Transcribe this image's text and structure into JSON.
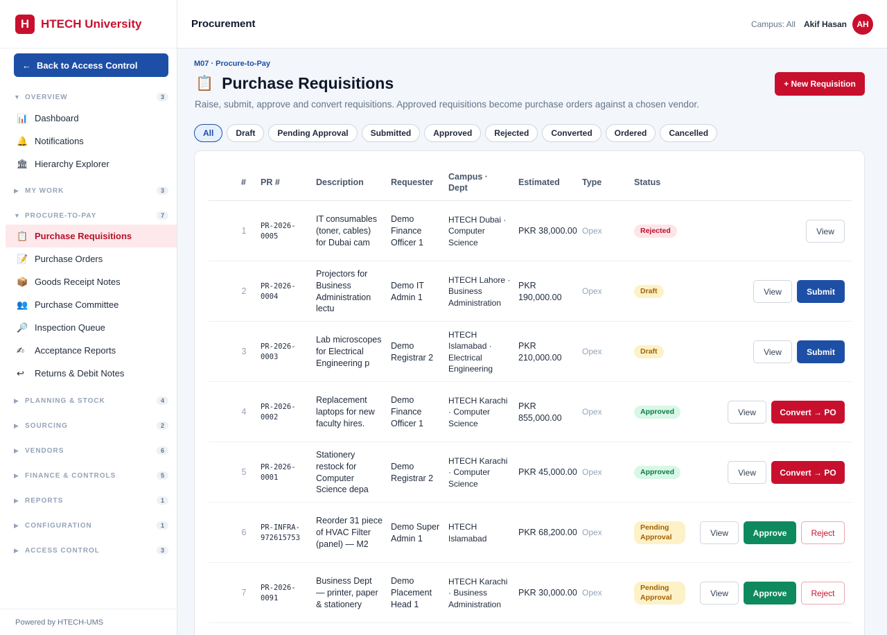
{
  "brand": {
    "logo_letter": "H",
    "name": "HTECH University"
  },
  "sidebar": {
    "back_label": "Back to Access Control",
    "back_arrow": "←",
    "overview": {
      "label": "OVERVIEW",
      "count": "3"
    },
    "overview_items": [
      {
        "label": "Dashboard",
        "icon": "📊"
      },
      {
        "label": "Notifications",
        "icon": "🔔"
      },
      {
        "label": "Hierarchy Explorer",
        "icon": "🏛"
      }
    ],
    "my_work": {
      "label": "MY WORK",
      "count": "3"
    },
    "procure": {
      "label": "PROCURE-TO-PAY",
      "count": "7"
    },
    "procure_items": [
      {
        "label": "Purchase Requisitions",
        "icon": "📋"
      },
      {
        "label": "Purchase Orders",
        "icon": "📝"
      },
      {
        "label": "Goods Receipt Notes",
        "icon": "📦"
      },
      {
        "label": "Purchase Committee",
        "icon": "👥"
      },
      {
        "label": "Inspection Queue",
        "icon": "🔎"
      },
      {
        "label": "Acceptance Reports",
        "icon": "✍"
      },
      {
        "label": "Returns & Debit Notes",
        "icon": "↩"
      }
    ],
    "sections": [
      {
        "label": "PLANNING & STOCK",
        "count": "4"
      },
      {
        "label": "SOURCING",
        "count": "2"
      },
      {
        "label": "VENDORS",
        "count": "6"
      },
      {
        "label": "FINANCE & CONTROLS",
        "count": "5"
      },
      {
        "label": "REPORTS",
        "count": "1"
      },
      {
        "label": "CONFIGURATION",
        "count": "1"
      },
      {
        "label": "ACCESS CONTROL",
        "count": "3"
      }
    ],
    "footer": "Powered by HTECH-UMS"
  },
  "topbar": {
    "title": "Procurement",
    "campus": "Campus: All",
    "user": "Akif Hasan",
    "initials": "AH"
  },
  "page": {
    "crumb": "M07 · Procure-to-Pay",
    "icon": "📋",
    "title": "Purchase Requisitions",
    "subtitle": "Raise, submit, approve and convert requisitions. Approved requisitions become purchase orders against a chosen vendor.",
    "new_button": "+ New Requisition"
  },
  "filters": [
    "All",
    "Draft",
    "Pending Approval",
    "Submitted",
    "Approved",
    "Rejected",
    "Converted",
    "Ordered",
    "Cancelled"
  ],
  "table": {
    "headers": {
      "idx": "#",
      "pr": "PR #",
      "desc": "Description",
      "req": "Requester",
      "camp": "Campus · Dept",
      "est": "Estimated",
      "type": "Type",
      "status": "Status"
    },
    "rows": [
      {
        "idx": "1",
        "pr": "PR-2026-0005",
        "desc": "IT consumables (toner, cables) for Dubai cam",
        "req": "Demo Finance Officer 1",
        "camp": "HTECH Dubai · Computer Science",
        "est": "PKR 38,000.00",
        "type": "Opex",
        "status": "Rejected"
      },
      {
        "idx": "2",
        "pr": "PR-2026-0004",
        "desc": "Projectors for Business Administration lectu",
        "req": "Demo IT Admin 1",
        "camp": "HTECH Lahore · Business Administration",
        "est": "PKR 190,000.00",
        "type": "Opex",
        "status": "Draft"
      },
      {
        "idx": "3",
        "pr": "PR-2026-0003",
        "desc": "Lab microscopes for Electrical Engineering p",
        "req": "Demo Registrar 2",
        "camp": "HTECH Islamabad · Electrical Engineering",
        "est": "PKR 210,000.00",
        "type": "Opex",
        "status": "Draft"
      },
      {
        "idx": "4",
        "pr": "PR-2026-0002",
        "desc": "Replacement laptops for new faculty hires.",
        "req": "Demo Finance Officer 1",
        "camp": "HTECH Karachi · Computer Science",
        "est": "PKR 855,000.00",
        "type": "Opex",
        "status": "Approved"
      },
      {
        "idx": "5",
        "pr": "PR-2026-0001",
        "desc": "Stationery restock for Computer Science depa",
        "req": "Demo Registrar 2",
        "camp": "HTECH Karachi · Computer Science",
        "est": "PKR 45,000.00",
        "type": "Opex",
        "status": "Approved"
      },
      {
        "idx": "6",
        "pr": "PR-INFRA-972615753",
        "desc": "Reorder 31 piece of HVAC Filter (panel) — M2",
        "req": "Demo Super Admin 1",
        "camp": "HTECH Islamabad",
        "est": "PKR 68,200.00",
        "type": "Opex",
        "status": "Pending Approval"
      },
      {
        "idx": "7",
        "pr": "PR-2026-0091",
        "desc": "Business Dept — printer, paper & stationery",
        "req": "Demo Placement Head 1",
        "camp": "HTECH Karachi · Business Administration",
        "est": "PKR 30,000.00",
        "type": "Opex",
        "status": "Pending Approval"
      }
    ],
    "actions": {
      "view": "View",
      "submit": "Submit",
      "convert": "Convert → PO",
      "approve": "Approve",
      "reject": "Reject"
    }
  }
}
